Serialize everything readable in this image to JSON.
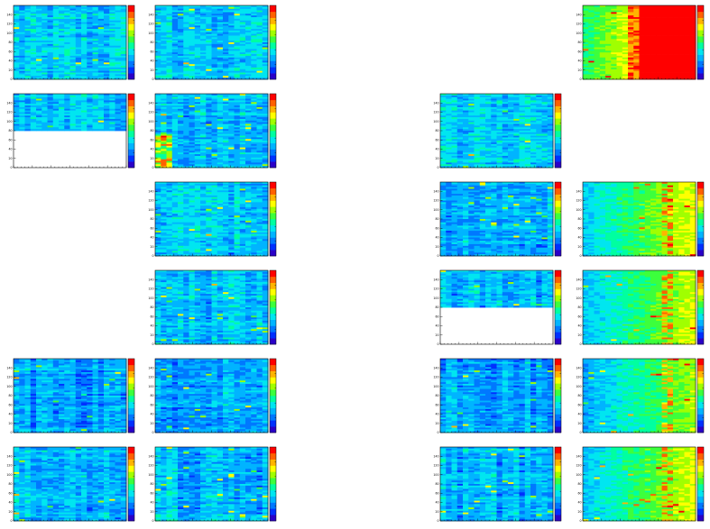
{
  "layout": {
    "cols": 5,
    "rows": 6
  },
  "colors": {
    "palette": [
      "#2a00c8",
      "#0030ff",
      "#0078ff",
      "#00b4ff",
      "#00e6f0",
      "#00ffa0",
      "#3cff3c",
      "#a0ff00",
      "#ffff00",
      "#ffb400",
      "#ff6000",
      "#ff0000"
    ],
    "frame": "#000000",
    "empty": "#ffffff"
  },
  "chart_data": [
    {
      "type": "heatmap",
      "row": 0,
      "col": 0,
      "pattern": "uniform",
      "level": 0.33,
      "ylim": [
        0,
        160
      ],
      "yticks": [
        "0",
        "20",
        "40",
        "60",
        "80",
        "100",
        "120",
        "140"
      ]
    },
    {
      "type": "heatmap",
      "row": 0,
      "col": 1,
      "pattern": "uniform",
      "level": 0.33,
      "ylim": [
        0,
        160
      ],
      "yticks": [
        "0",
        "20",
        "40",
        "60",
        "80",
        "100",
        "120",
        "140"
      ]
    },
    {
      "type": "heatmap",
      "row": 0,
      "col": 4,
      "pattern": "saturated",
      "level": 0.65,
      "ylim": [
        0,
        160
      ],
      "yticks": [
        "0",
        "20",
        "40",
        "60",
        "80",
        "100",
        "120",
        "140"
      ]
    },
    {
      "type": "heatmap",
      "row": 1,
      "col": 0,
      "pattern": "top_only",
      "level": 0.33,
      "filled_fraction": 0.5,
      "ylim": [
        0,
        160
      ],
      "yticks": [
        "0",
        "20",
        "40",
        "60",
        "80",
        "100",
        "120",
        "140"
      ]
    },
    {
      "type": "heatmap",
      "row": 1,
      "col": 1,
      "pattern": "hot_corner",
      "level": 0.3,
      "ylim": [
        0,
        160
      ],
      "yticks": [
        "0",
        "20",
        "40",
        "60",
        "80",
        "100",
        "120",
        "140"
      ]
    },
    {
      "type": "heatmap",
      "row": 1,
      "col": 3,
      "pattern": "uniform",
      "level": 0.33,
      "ylim": [
        0,
        160
      ],
      "yticks": [
        "0",
        "20",
        "40",
        "60",
        "80",
        "100",
        "120",
        "140"
      ]
    },
    {
      "type": "heatmap",
      "row": 2,
      "col": 1,
      "pattern": "uniform",
      "level": 0.33,
      "ylim": [
        0,
        160
      ],
      "yticks": [
        "0",
        "20",
        "40",
        "60",
        "80",
        "100",
        "120",
        "140"
      ]
    },
    {
      "type": "heatmap",
      "row": 2,
      "col": 3,
      "pattern": "uniform",
      "level": 0.28,
      "ylim": [
        0,
        160
      ],
      "yticks": [
        "0",
        "20",
        "40",
        "60",
        "80",
        "100",
        "120",
        "140"
      ]
    },
    {
      "type": "heatmap",
      "row": 2,
      "col": 4,
      "pattern": "gradient",
      "level": 0.35,
      "ylim": [
        0,
        160
      ],
      "yticks": [
        "0",
        "20",
        "40",
        "60",
        "80",
        "100",
        "120",
        "140"
      ]
    },
    {
      "type": "heatmap",
      "row": 3,
      "col": 1,
      "pattern": "uniform",
      "level": 0.3,
      "ylim": [
        0,
        160
      ],
      "yticks": [
        "0",
        "20",
        "40",
        "60",
        "80",
        "100",
        "120",
        "140"
      ]
    },
    {
      "type": "heatmap",
      "row": 3,
      "col": 3,
      "pattern": "top_only",
      "level": 0.3,
      "filled_fraction": 0.5,
      "ylim": [
        0,
        160
      ],
      "yticks": [
        "0",
        "20",
        "40",
        "60",
        "80",
        "100",
        "120",
        "140"
      ]
    },
    {
      "type": "heatmap",
      "row": 3,
      "col": 4,
      "pattern": "gradient",
      "level": 0.32,
      "ylim": [
        0,
        160
      ],
      "yticks": [
        "0",
        "20",
        "40",
        "60",
        "80",
        "100",
        "120",
        "140"
      ]
    },
    {
      "type": "heatmap",
      "row": 4,
      "col": 0,
      "pattern": "uniform",
      "level": 0.27,
      "ylim": [
        0,
        160
      ],
      "yticks": [
        "0",
        "20",
        "40",
        "60",
        "80",
        "100",
        "120",
        "140"
      ]
    },
    {
      "type": "heatmap",
      "row": 4,
      "col": 1,
      "pattern": "uniform",
      "level": 0.27,
      "ylim": [
        0,
        160
      ],
      "yticks": [
        "0",
        "20",
        "40",
        "60",
        "80",
        "100",
        "120",
        "140"
      ]
    },
    {
      "type": "heatmap",
      "row": 4,
      "col": 3,
      "pattern": "uniform",
      "level": 0.27,
      "ylim": [
        0,
        160
      ],
      "yticks": [
        "0",
        "20",
        "40",
        "60",
        "80",
        "100",
        "120",
        "140"
      ]
    },
    {
      "type": "heatmap",
      "row": 4,
      "col": 4,
      "pattern": "gradient",
      "level": 0.28,
      "ylim": [
        0,
        160
      ],
      "yticks": [
        "0",
        "20",
        "40",
        "60",
        "80",
        "100",
        "120",
        "140"
      ]
    },
    {
      "type": "heatmap",
      "row": 5,
      "col": 0,
      "pattern": "uniform",
      "level": 0.3,
      "ylim": [
        0,
        160
      ],
      "yticks": [
        "0",
        "20",
        "40",
        "60",
        "80",
        "100",
        "120",
        "140"
      ]
    },
    {
      "type": "heatmap",
      "row": 5,
      "col": 1,
      "pattern": "uniform",
      "level": 0.3,
      "ylim": [
        0,
        160
      ],
      "yticks": [
        "0",
        "20",
        "40",
        "60",
        "80",
        "100",
        "120",
        "140"
      ]
    },
    {
      "type": "heatmap",
      "row": 5,
      "col": 3,
      "pattern": "uniform",
      "level": 0.3,
      "ylim": [
        0,
        160
      ],
      "yticks": [
        "0",
        "20",
        "40",
        "60",
        "80",
        "100",
        "120",
        "140"
      ]
    },
    {
      "type": "heatmap",
      "row": 5,
      "col": 4,
      "pattern": "gradient",
      "level": 0.33,
      "ylim": [
        0,
        160
      ],
      "yticks": [
        "0",
        "20",
        "40",
        "60",
        "80",
        "100",
        "120",
        "140"
      ]
    }
  ]
}
